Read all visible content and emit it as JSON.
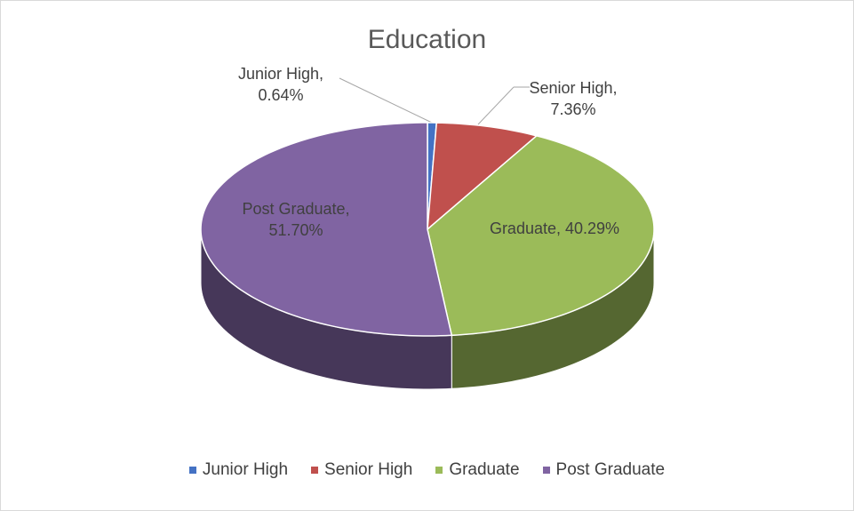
{
  "chart_data": {
    "type": "pie3d",
    "title": "Education",
    "categories": [
      "Junior High",
      "Senior High",
      "Graduate",
      "Post Graduate"
    ],
    "values": [
      0.64,
      7.36,
      40.29,
      51.7
    ],
    "value_labels": [
      "Junior High, 0.64%",
      "Senior High, 7.36%",
      "Graduate, 40.29%",
      "Post Graduate, 51.70%"
    ],
    "colors": [
      "#4472c4",
      "#c0504d",
      "#9bbb59",
      "#8064a2"
    ],
    "legend": "bottom"
  }
}
